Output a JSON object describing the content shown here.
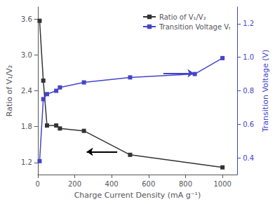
{
  "chart_data": {
    "type": "line",
    "xlabel": "Charge Current Density (mA g⁻¹)",
    "ylabel": "Ratio of V₁/V₂",
    "y2label": "Transition Voltage (V)",
    "xlim": [
      0,
      1080
    ],
    "xticks": [
      0,
      200,
      400,
      600,
      800,
      1000
    ],
    "ylim": [
      1.0,
      3.8
    ],
    "yticks": [
      1.2,
      1.8,
      2.4,
      {
        "value": 3.0,
        "label": "3.0"
      },
      3.6
    ],
    "y2lim": [
      0.3,
      1.3
    ],
    "y2ticks": [
      0.4,
      0.6,
      0.8,
      {
        "value": 1.0,
        "label": "1.0"
      },
      1.2
    ],
    "grid": false,
    "legend": "upper right",
    "marker": "square",
    "series": [
      {
        "name": "Ratio of V₁/V₂",
        "color": "#333333",
        "x": [
          10,
          30,
          50,
          100,
          120,
          250,
          500,
          1000
        ],
        "values": [
          3.57,
          2.57,
          1.82,
          1.82,
          1.77,
          1.73,
          1.33,
          1.12
        ]
      },
      {
        "name": "Transition Voltage Vₜ",
        "color": "#4444cc",
        "axis": "y2",
        "x": [
          10,
          30,
          50,
          100,
          120,
          250,
          500,
          850,
          1000
        ],
        "values": [
          0.38,
          0.75,
          0.78,
          0.8,
          0.82,
          0.85,
          0.88,
          0.9,
          0.995
        ]
      }
    ],
    "annotations": [
      {
        "type": "arrow",
        "x": [
          430,
          265
        ],
        "y": 1.38,
        "color": "#000000"
      },
      {
        "type": "arrow",
        "x": [
          680,
          845
        ],
        "y": 0.905,
        "axis": "y2",
        "color": "#4444cc"
      }
    ]
  }
}
